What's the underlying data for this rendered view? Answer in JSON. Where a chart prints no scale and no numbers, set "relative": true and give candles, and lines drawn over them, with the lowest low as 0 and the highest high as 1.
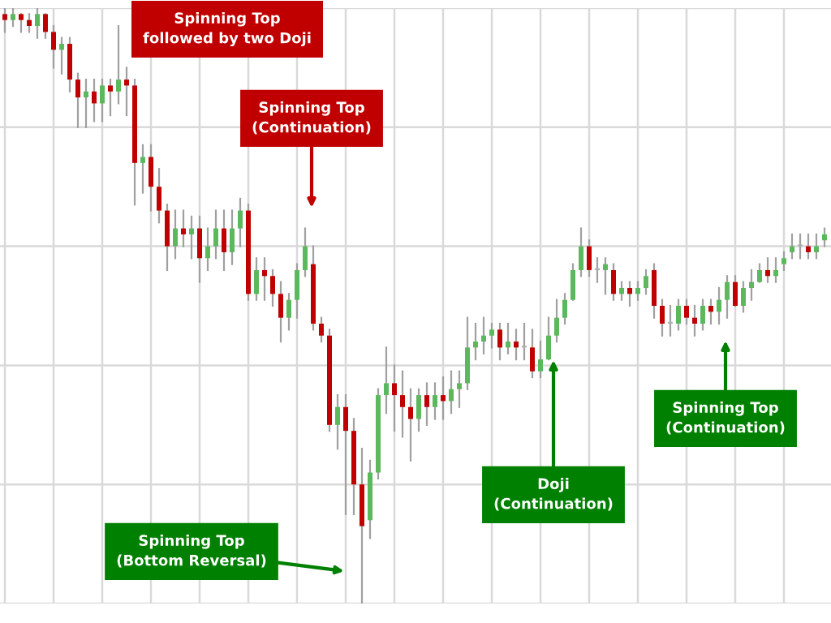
{
  "chart_data": {
    "type": "candlestick",
    "relative": true,
    "grid": true,
    "categories": [
      null,
      null,
      null,
      null,
      null,
      null,
      null,
      null,
      null,
      null,
      null,
      null,
      null,
      null,
      null,
      null,
      null,
      null,
      null,
      null,
      null,
      null,
      null,
      null,
      null,
      null,
      null,
      null,
      null,
      null,
      null,
      null,
      null,
      null,
      null,
      null,
      null,
      null,
      null,
      null,
      null,
      null,
      null,
      null,
      null,
      null,
      null,
      null,
      null,
      null,
      null,
      null,
      null,
      null,
      null,
      null,
      null,
      null,
      null,
      null,
      null,
      null,
      null,
      null,
      null,
      null,
      null,
      null,
      null,
      null,
      null,
      null,
      null,
      null,
      null,
      null,
      null,
      null,
      null,
      null,
      null,
      null,
      null,
      null,
      null,
      null,
      null,
      null,
      null,
      null,
      null,
      null,
      null,
      null,
      null,
      null,
      null,
      null,
      null,
      null,
      null,
      null
    ],
    "ohlc": [
      [
        0.99,
        1.0,
        0.96,
        0.98
      ],
      [
        0.98,
        1.0,
        0.97,
        0.99
      ],
      [
        0.99,
        0.99,
        0.96,
        0.98
      ],
      [
        0.98,
        0.99,
        0.96,
        0.97
      ],
      [
        0.97,
        1.0,
        0.95,
        0.99
      ],
      [
        0.99,
        0.99,
        0.95,
        0.96
      ],
      [
        0.96,
        0.97,
        0.9,
        0.93
      ],
      [
        0.93,
        0.95,
        0.89,
        0.94
      ],
      [
        0.94,
        0.95,
        0.86,
        0.88
      ],
      [
        0.88,
        0.89,
        0.8,
        0.85
      ],
      [
        0.85,
        0.88,
        0.8,
        0.86
      ],
      [
        0.86,
        0.88,
        0.81,
        0.84
      ],
      [
        0.84,
        0.88,
        0.81,
        0.87
      ],
      [
        0.87,
        0.88,
        0.82,
        0.86
      ],
      [
        0.86,
        0.97,
        0.84,
        0.88
      ],
      [
        0.88,
        0.9,
        0.82,
        0.87
      ],
      [
        0.87,
        0.88,
        0.67,
        0.74
      ],
      [
        0.74,
        0.77,
        0.69,
        0.75
      ],
      [
        0.75,
        0.77,
        0.66,
        0.7
      ],
      [
        0.7,
        0.73,
        0.64,
        0.66
      ],
      [
        0.66,
        0.67,
        0.56,
        0.6
      ],
      [
        0.6,
        0.66,
        0.58,
        0.63
      ],
      [
        0.63,
        0.66,
        0.6,
        0.62
      ],
      [
        0.62,
        0.65,
        0.58,
        0.63
      ],
      [
        0.63,
        0.65,
        0.54,
        0.58
      ],
      [
        0.58,
        0.63,
        0.56,
        0.6
      ],
      [
        0.6,
        0.66,
        0.58,
        0.63
      ],
      [
        0.63,
        0.66,
        0.56,
        0.59
      ],
      [
        0.59,
        0.66,
        0.57,
        0.63
      ],
      [
        0.63,
        0.68,
        0.6,
        0.66
      ],
      [
        0.66,
        0.67,
        0.51,
        0.52
      ],
      [
        0.52,
        0.58,
        0.51,
        0.56
      ],
      [
        0.56,
        0.58,
        0.51,
        0.55
      ],
      [
        0.55,
        0.56,
        0.5,
        0.52
      ],
      [
        0.52,
        0.54,
        0.44,
        0.48
      ],
      [
        0.48,
        0.52,
        0.46,
        0.51
      ],
      [
        0.51,
        0.57,
        0.48,
        0.56
      ],
      [
        0.56,
        0.63,
        0.55,
        0.6
      ],
      [
        0.57,
        0.6,
        0.46,
        0.47
      ],
      [
        0.47,
        0.48,
        0.44,
        0.45
      ],
      [
        0.45,
        0.46,
        0.29,
        0.3
      ],
      [
        0.3,
        0.35,
        0.26,
        0.33
      ],
      [
        0.33,
        0.35,
        0.15,
        0.29
      ],
      [
        0.29,
        0.31,
        0.15,
        0.2
      ],
      [
        0.2,
        0.26,
        0.0,
        0.13
      ],
      [
        0.14,
        0.24,
        0.11,
        0.22
      ],
      [
        0.22,
        0.36,
        0.21,
        0.35
      ],
      [
        0.35,
        0.43,
        0.32,
        0.37
      ],
      [
        0.37,
        0.4,
        0.29,
        0.35
      ],
      [
        0.35,
        0.39,
        0.28,
        0.33
      ],
      [
        0.33,
        0.36,
        0.24,
        0.31
      ],
      [
        0.31,
        0.36,
        0.29,
        0.35
      ],
      [
        0.35,
        0.37,
        0.3,
        0.33
      ],
      [
        0.33,
        0.37,
        0.31,
        0.35
      ],
      [
        0.35,
        0.38,
        0.31,
        0.34
      ],
      [
        0.34,
        0.39,
        0.32,
        0.36
      ],
      [
        0.36,
        0.39,
        0.33,
        0.37
      ],
      [
        0.37,
        0.48,
        0.36,
        0.43
      ],
      [
        0.43,
        0.47,
        0.41,
        0.44
      ],
      [
        0.44,
        0.48,
        0.42,
        0.45
      ],
      [
        0.45,
        0.47,
        0.43,
        0.46
      ],
      [
        0.46,
        0.47,
        0.41,
        0.43
      ],
      [
        0.43,
        0.47,
        0.42,
        0.44
      ],
      [
        0.44,
        0.46,
        0.41,
        0.43
      ],
      [
        0.43,
        0.47,
        0.41,
        0.43
      ],
      [
        0.43,
        0.46,
        0.38,
        0.39
      ],
      [
        0.39,
        0.44,
        0.38,
        0.41
      ],
      [
        0.41,
        0.48,
        0.41,
        0.45
      ],
      [
        0.45,
        0.51,
        0.44,
        0.48
      ],
      [
        0.48,
        0.52,
        0.47,
        0.51
      ],
      [
        0.51,
        0.57,
        0.51,
        0.56
      ],
      [
        0.56,
        0.63,
        0.55,
        0.6
      ],
      [
        0.6,
        0.61,
        0.55,
        0.56
      ],
      [
        0.56,
        0.58,
        0.54,
        0.56
      ],
      [
        0.56,
        0.58,
        0.52,
        0.57
      ],
      [
        0.56,
        0.57,
        0.51,
        0.52
      ],
      [
        0.52,
        0.54,
        0.51,
        0.53
      ],
      [
        0.53,
        0.54,
        0.5,
        0.52
      ],
      [
        0.52,
        0.54,
        0.51,
        0.53
      ],
      [
        0.53,
        0.56,
        0.52,
        0.55
      ],
      [
        0.56,
        0.57,
        0.48,
        0.5
      ],
      [
        0.5,
        0.51,
        0.45,
        0.47
      ],
      [
        0.47,
        0.5,
        0.45,
        0.47
      ],
      [
        0.47,
        0.51,
        0.46,
        0.5
      ],
      [
        0.5,
        0.51,
        0.47,
        0.48
      ],
      [
        0.48,
        0.5,
        0.45,
        0.47
      ],
      [
        0.47,
        0.51,
        0.46,
        0.5
      ],
      [
        0.5,
        0.51,
        0.47,
        0.49
      ],
      [
        0.49,
        0.53,
        0.47,
        0.51
      ],
      [
        0.51,
        0.55,
        0.48,
        0.54
      ],
      [
        0.54,
        0.55,
        0.5,
        0.5
      ],
      [
        0.5,
        0.54,
        0.49,
        0.53
      ],
      [
        0.53,
        0.56,
        0.51,
        0.54
      ],
      [
        0.54,
        0.57,
        0.54,
        0.56
      ],
      [
        0.56,
        0.58,
        0.54,
        0.55
      ],
      [
        0.55,
        0.58,
        0.54,
        0.56
      ],
      [
        0.57,
        0.59,
        0.56,
        0.58
      ],
      [
        0.59,
        0.62,
        0.58,
        0.6
      ],
      [
        0.6,
        0.62,
        0.58,
        0.6
      ],
      [
        0.6,
        0.62,
        0.58,
        0.59
      ],
      [
        0.59,
        0.62,
        0.58,
        0.6
      ],
      [
        0.61,
        0.63,
        0.6,
        0.62
      ]
    ],
    "colors": [
      "#c00000",
      "#5cb85c",
      "#c00000",
      "#c00000",
      "#5cb85c",
      "#c00000",
      "#c00000",
      "#5cb85c",
      "#c00000",
      "#c00000",
      "#5cb85c",
      "#c00000",
      "#5cb85c",
      "#c00000",
      "#5cb85c",
      "#c00000",
      "#c00000",
      "#5cb85c",
      "#c00000",
      "#c00000",
      "#c00000",
      "#5cb85c",
      "#c00000",
      "#5cb85c",
      "#c00000",
      "#5cb85c",
      "#5cb85c",
      "#c00000",
      "#5cb85c",
      "#5cb85c",
      "#c00000",
      "#5cb85c",
      "#c00000",
      "#c00000",
      "#c00000",
      "#5cb85c",
      "#5cb85c",
      "#5cb85c",
      "#c00000",
      "#c00000",
      "#c00000",
      "#5cb85c",
      "#c00000",
      "#c00000",
      "#c00000",
      "#5cb85c",
      "#5cb85c",
      "#5cb85c",
      "#c00000",
      "#c00000",
      "#c00000",
      "#5cb85c",
      "#c00000",
      "#5cb85c",
      "#c00000",
      "#5cb85c",
      "#5cb85c",
      "#5cb85c",
      "#5cb85c",
      "#5cb85c",
      "#5cb85c",
      "#c00000",
      "#5cb85c",
      "#c00000",
      "#b0b0b0",
      "#c00000",
      "#5cb85c",
      "#5cb85c",
      "#5cb85c",
      "#5cb85c",
      "#5cb85c",
      "#5cb85c",
      "#c00000",
      "#b0b0b0",
      "#5cb85c",
      "#c00000",
      "#5cb85c",
      "#c00000",
      "#5cb85c",
      "#5cb85c",
      "#c00000",
      "#c00000",
      "#b0b0b0",
      "#5cb85c",
      "#c00000",
      "#c00000",
      "#5cb85c",
      "#c00000",
      "#5cb85c",
      "#5cb85c",
      "#c00000",
      "#5cb85c",
      "#5cb85c",
      "#5cb85c",
      "#c00000",
      "#5cb85c",
      "#5cb85c",
      "#5cb85c",
      "#b0b0b0",
      "#c00000",
      "#5cb85c",
      "#5cb85c"
    ],
    "annotations": [
      "Spinning Top\nfollowed by two Doji",
      "Spinning Top\n(Continuation)",
      "Spinning Top\n(Bottom Reversal)",
      "Doji\n(Continuation)",
      "Spinning Top\n(Continuation)"
    ]
  }
}
